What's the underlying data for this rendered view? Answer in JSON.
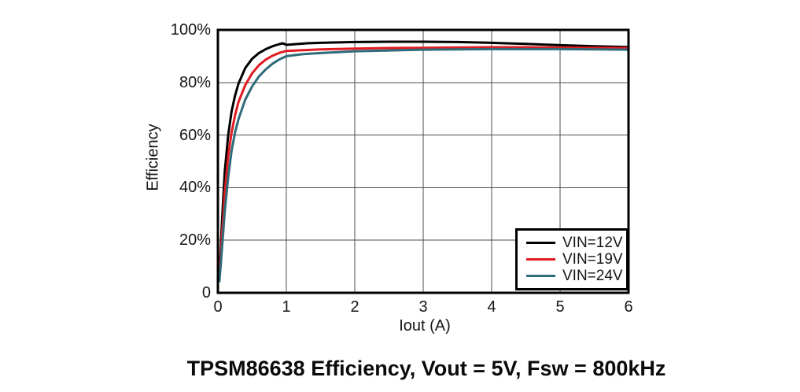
{
  "figure": {
    "caption": "TPSM86638 Efficiency, Vout = 5V, Fsw = 800kHz"
  },
  "chart_data": {
    "type": "line",
    "title": "TPSM86638 Efficiency, Vout = 5V, Fsw = 800kHz",
    "xlabel": "Iout (A)",
    "ylabel": "Efficiency",
    "xlim": [
      0,
      6
    ],
    "ylim": [
      0,
      100
    ],
    "x_ticks": [
      0,
      1,
      2,
      3,
      4,
      5,
      6
    ],
    "x_tick_labels": [
      "0",
      "1",
      "2",
      "3",
      "4",
      "5",
      "6"
    ],
    "y_ticks": [
      0,
      20,
      40,
      60,
      80,
      100
    ],
    "y_tick_labels": [
      "0",
      "20%",
      "40%",
      "60%",
      "80%",
      "100%"
    ],
    "grid": true,
    "grid_color": "#4d4d4d",
    "axis_color": "#000000",
    "legend_position": "lower-right",
    "series": [
      {
        "name": "VIN=12V",
        "color": "#000000",
        "points": [
          [
            0.02,
            6
          ],
          [
            0.04,
            16
          ],
          [
            0.06,
            27
          ],
          [
            0.08,
            37
          ],
          [
            0.1,
            46
          ],
          [
            0.15,
            60
          ],
          [
            0.2,
            69
          ],
          [
            0.25,
            75
          ],
          [
            0.3,
            79.5
          ],
          [
            0.4,
            85.5
          ],
          [
            0.5,
            89
          ],
          [
            0.6,
            91.2
          ],
          [
            0.7,
            92.7
          ],
          [
            0.8,
            93.8
          ],
          [
            0.9,
            94.6
          ],
          [
            0.95,
            94.9
          ],
          [
            1.0,
            94.3
          ],
          [
            1.15,
            94.6
          ],
          [
            1.3,
            94.9
          ],
          [
            1.5,
            95.1
          ],
          [
            2.0,
            95.4
          ],
          [
            2.5,
            95.5
          ],
          [
            3.0,
            95.5
          ],
          [
            3.5,
            95.4
          ],
          [
            4.0,
            95.1
          ],
          [
            4.5,
            94.7
          ],
          [
            5.0,
            94.2
          ],
          [
            5.5,
            93.8
          ],
          [
            6.0,
            93.5
          ]
        ]
      },
      {
        "name": "VIN=19V",
        "color": "#e11b22",
        "points": [
          [
            0.02,
            5
          ],
          [
            0.04,
            13
          ],
          [
            0.06,
            22
          ],
          [
            0.08,
            30
          ],
          [
            0.1,
            38
          ],
          [
            0.15,
            52
          ],
          [
            0.2,
            61
          ],
          [
            0.25,
            67.5
          ],
          [
            0.3,
            72.5
          ],
          [
            0.4,
            79
          ],
          [
            0.5,
            83.5
          ],
          [
            0.6,
            86.6
          ],
          [
            0.7,
            88.7
          ],
          [
            0.8,
            90.2
          ],
          [
            0.9,
            91.3
          ],
          [
            1.0,
            92.0
          ],
          [
            1.25,
            92.3
          ],
          [
            1.5,
            92.6
          ],
          [
            2.0,
            92.9
          ],
          [
            2.5,
            93.1
          ],
          [
            3.0,
            93.2
          ],
          [
            3.5,
            93.3
          ],
          [
            4.0,
            93.4
          ],
          [
            4.5,
            93.4
          ],
          [
            5.0,
            93.3
          ],
          [
            5.5,
            93.2
          ],
          [
            6.0,
            93.1
          ]
        ]
      },
      {
        "name": "VIN=24V",
        "color": "#2f6b7a",
        "points": [
          [
            0.02,
            4
          ],
          [
            0.04,
            10
          ],
          [
            0.06,
            17
          ],
          [
            0.08,
            24
          ],
          [
            0.1,
            31
          ],
          [
            0.15,
            44
          ],
          [
            0.2,
            54
          ],
          [
            0.25,
            61
          ],
          [
            0.3,
            66
          ],
          [
            0.4,
            73.5
          ],
          [
            0.5,
            78.5
          ],
          [
            0.6,
            82.3
          ],
          [
            0.7,
            85
          ],
          [
            0.8,
            87.2
          ],
          [
            0.9,
            88.8
          ],
          [
            1.0,
            90.0
          ],
          [
            1.25,
            90.8
          ],
          [
            1.5,
            91.2
          ],
          [
            2.0,
            91.9
          ],
          [
            2.5,
            92.2
          ],
          [
            3.0,
            92.5
          ],
          [
            3.5,
            92.6
          ],
          [
            4.0,
            92.7
          ],
          [
            4.5,
            92.7
          ],
          [
            5.0,
            92.7
          ],
          [
            5.5,
            92.6
          ],
          [
            6.0,
            92.5
          ]
        ]
      }
    ]
  }
}
